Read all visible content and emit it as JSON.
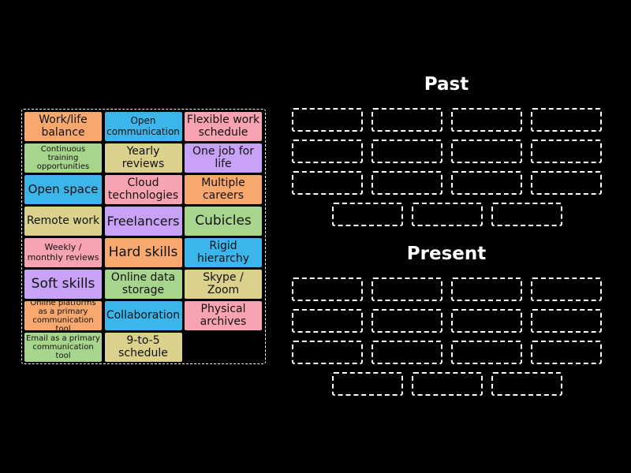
{
  "tiles": [
    "Work/life balance",
    "Open communication",
    "Flexible work schedule",
    "Continuous training opportunities",
    "Yearly reviews",
    "One job for life",
    "Open space",
    "Cloud technologies",
    "Multiple careers",
    "Remote work",
    "Freelancers",
    "Cubicles",
    "Weekly / monthly reviews",
    "Hard skills",
    "Rigid hierarchy",
    "Soft skills",
    "Online data storage",
    "Skype / Zoom",
    "Online platforms as a primary communication tool",
    "Collaboration",
    "Physical archives",
    "Email as a primary communication tool",
    "9-to-5 schedule"
  ],
  "groups": [
    {
      "title": "Past"
    },
    {
      "title": "Present"
    }
  ]
}
